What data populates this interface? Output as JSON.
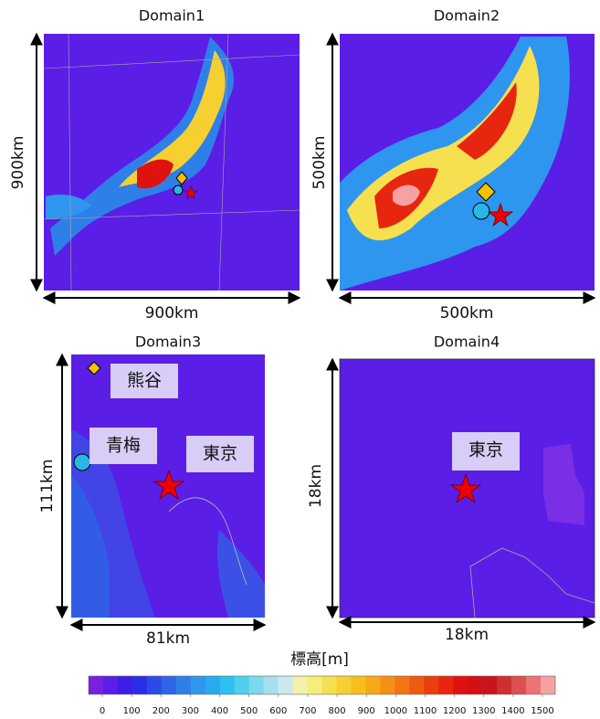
{
  "panels": [
    {
      "title": "Domain1",
      "x_label": "900km",
      "y_label": "900km"
    },
    {
      "title": "Domain2",
      "x_label": "500km",
      "y_label": "500km"
    },
    {
      "title": "Domain3",
      "x_label": "81km",
      "y_label": "111km",
      "places": [
        "熊谷",
        "青梅",
        "東京"
      ]
    },
    {
      "title": "Domain4",
      "x_label": "18km",
      "y_label": "18km",
      "places": [
        "東京"
      ]
    }
  ],
  "colorbar": {
    "label": "標高[m]",
    "ticks": [
      0,
      100,
      200,
      300,
      400,
      500,
      600,
      700,
      800,
      900,
      1000,
      1100,
      1200,
      1300,
      1400,
      1500
    ],
    "colors": [
      "#7a1fe0",
      "#5a1ee6",
      "#3c1ee6",
      "#2a2ee6",
      "#2c4be6",
      "#2e66e6",
      "#2f7fe8",
      "#2e96ee",
      "#28aaf0",
      "#2ec0f0",
      "#4fcff0",
      "#7ad8ef",
      "#a6e0f0",
      "#cce8ee",
      "#f2f2a8",
      "#f7ee7a",
      "#f6e050",
      "#f5d030",
      "#f6bf1e",
      "#f6a817",
      "#f59015",
      "#f27512",
      "#ee5a10",
      "#ea3e0f",
      "#e6260f",
      "#e0120f",
      "#d40f15",
      "#c8141c",
      "#cc3030",
      "#dc5050",
      "#ea7474",
      "#f5a2a2"
    ]
  }
}
